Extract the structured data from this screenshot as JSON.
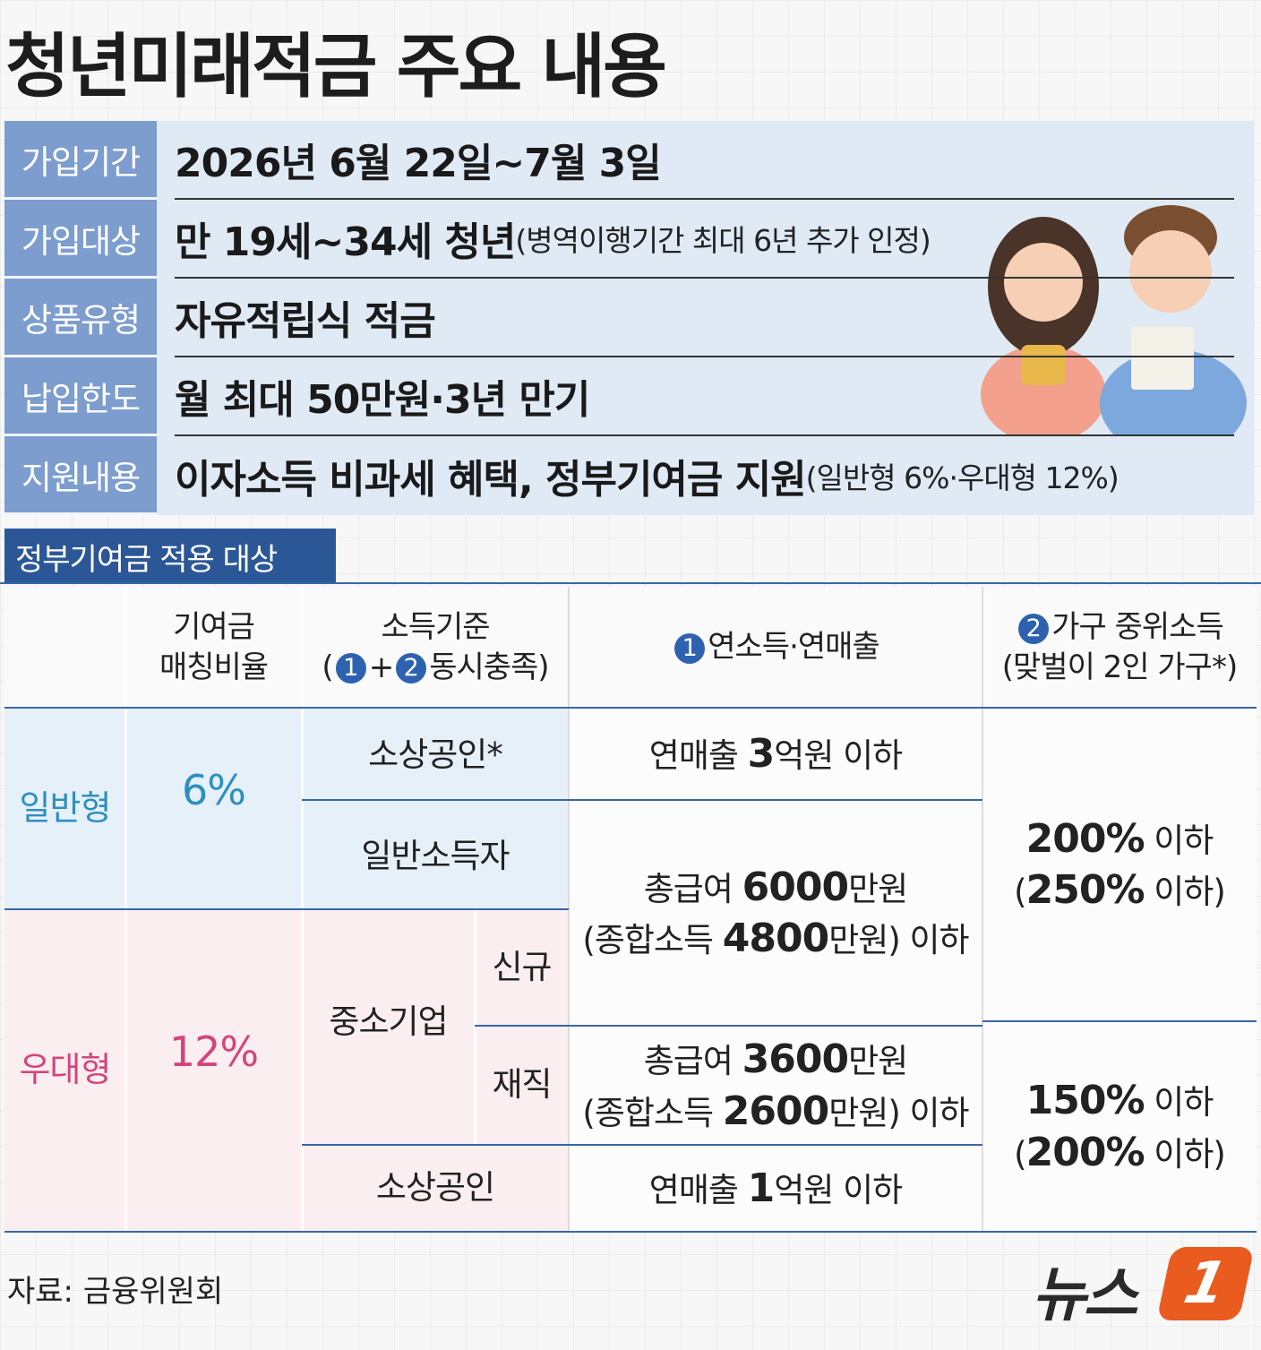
{
  "title": "청년미래적금 주요 내용",
  "summary": [
    {
      "label": "가입기간",
      "value": "2026년 6월 22일~7월 3일"
    },
    {
      "label": "가입대상",
      "value": "만 19세~34세 청년",
      "note": "(병역이행기간 최대 6년 추가 인정)"
    },
    {
      "label": "상품유형",
      "value": "자유적립식 적금"
    },
    {
      "label": "납입한도",
      "value": "월 최대 50만원·3년 만기"
    },
    {
      "label": "지원내용",
      "value": "이자소득 비과세 혜택, 정부기여금 지원",
      "note": "(일반형 6%·우대형 12%)"
    }
  ],
  "section_title": "정부기여금 적용 대상",
  "table": {
    "header": [
      {
        "lines": [
          [
            "기여금"
          ],
          [
            "매칭비율"
          ]
        ]
      },
      {
        "lines": [
          [
            "소득기준"
          ],
          [
            "(",
            {
              "badge": "1"
            },
            "+",
            {
              "badge": "2"
            },
            "동시충족)"
          ]
        ]
      },
      {
        "lines": [
          [
            {
              "badge": "1"
            },
            "연소득·연매출"
          ]
        ]
      },
      {
        "lines": [
          [
            {
              "badge": "2"
            },
            "가구 중위소득"
          ],
          [
            "(맞벌이 2인 가구*)"
          ]
        ]
      }
    ],
    "groups": [
      {
        "type": "일반형",
        "ratio": "6%"
      },
      {
        "type": "우대형",
        "ratio": "12%"
      }
    ],
    "criteria": [
      "소상공인*",
      "일반소득자",
      "중소기업",
      "신규",
      "재직",
      "소상공인"
    ],
    "income": [
      [
        "연매출 3억원 이하"
      ],
      [
        "총급여 6000만원",
        "(종합소득 4800만원) 이하"
      ],
      [
        "총급여 3600만원",
        "(종합소득 2600만원) 이하"
      ],
      [
        "연매출 1억원 이하"
      ]
    ],
    "median": [
      [
        "200% 이하",
        "(250% 이하)"
      ],
      [
        "150% 이하",
        "(200% 이하)"
      ]
    ]
  },
  "source": "자료: 금융위원회",
  "logo": {
    "text": "뉴스",
    "number": "1"
  }
}
